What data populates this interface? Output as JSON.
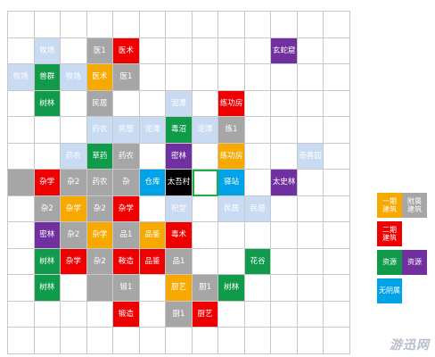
{
  "grid": {
    "cols": 13,
    "rows": [
      [
        "",
        "",
        "",
        "",
        "",
        "",
        "",
        "",
        "",
        "",
        "",
        "",
        ""
      ],
      [
        "",
        "lb:牧场",
        "",
        "gray:医1",
        "red:医术",
        "",
        "",
        "",
        "",
        "",
        "purple:玄蛇窟",
        "",
        ""
      ],
      [
        "lb:牧场",
        "green:兽群",
        "lb:牧场",
        "orange:医术",
        "gray:医1",
        "",
        "",
        "",
        "",
        "",
        "",
        "",
        ""
      ],
      [
        "",
        "green:树林",
        "",
        "gray:民居",
        "",
        "",
        "lb:泥潭",
        "",
        "red:练功房",
        "",
        "",
        "",
        ""
      ],
      [
        "",
        "",
        "",
        "lb:药农",
        "lb:民居",
        "lb:泥潭",
        "green:毒沼",
        "lb:泥潭",
        "gray:练1",
        "",
        "",
        "",
        ""
      ],
      [
        "",
        "",
        "lb:药农",
        "green:草药",
        "gray:药农",
        "",
        "purple:密林",
        "",
        "orange:练功房",
        "",
        "",
        "lb:奇香园",
        ""
      ],
      [
        "gray:",
        "red:杂学",
        "gray:杂2",
        "gray:药农",
        "gray:杂",
        "cyan:仓库",
        "black:太吾村",
        "sel:",
        "cyan:驿站",
        "",
        "purple:太史林",
        "",
        ""
      ],
      [
        "",
        "gray:杂2",
        "orange:杂学",
        "gray:杂2",
        "red:杂学",
        "",
        "lb:祀堂",
        "",
        "lb:民居",
        "lb:民居",
        "",
        "",
        ""
      ],
      [
        "",
        "purple:密林",
        "gray:杂2",
        "orange:杂学",
        "gray:品1",
        "orange:品鉴",
        "red:毒术",
        "",
        "",
        "",
        "",
        "",
        ""
      ],
      [
        "",
        "green:树林",
        "red:杂学",
        "gray:杂2",
        "red:鞍造",
        "red:品鉴",
        "gray:品1",
        "",
        "",
        "green:花谷",
        "",
        "",
        ""
      ],
      [
        "",
        "green:树林",
        "",
        "gray:",
        "gray:锻1",
        "",
        "orange:厨艺",
        "gray:厨1",
        "green:树林",
        "",
        "",
        "",
        ""
      ],
      [
        "",
        "",
        "",
        "",
        "red:锻造",
        "",
        "gray:厨1",
        "red:厨艺",
        "",
        "",
        "",
        "",
        ""
      ],
      [
        "",
        "",
        "",
        "",
        "",
        "",
        "",
        "",
        "",
        "",
        "",
        "",
        ""
      ]
    ]
  },
  "legend": [
    {
      "color": "orange",
      "label": "一期\n建筑"
    },
    {
      "color": "gray",
      "label": "附属\n建筑"
    },
    {
      "color": "red",
      "label": "二期\n建筑"
    },
    {
      "color": "blank",
      "label": ""
    },
    {
      "color": "green",
      "label": "资源"
    },
    {
      "color": "purple",
      "label": "资源"
    },
    {
      "color": "cyan",
      "label": "无阴属"
    },
    {
      "color": "blank",
      "label": ""
    }
  ],
  "watermark": "游迅网"
}
